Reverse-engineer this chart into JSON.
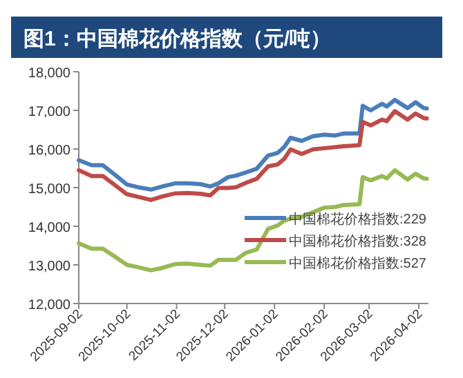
{
  "chart_data": {
    "type": "line",
    "title": "图1：中国棉花价格指数（元/吨）",
    "x": [
      "2025-09-02",
      "2025-09-10",
      "2025-09-17",
      "2025-09-25",
      "2025-10-02",
      "2025-10-09",
      "2025-10-17",
      "2025-10-24",
      "2025-11-01",
      "2025-11-09",
      "2025-11-17",
      "2025-11-23",
      "2025-11-28",
      "2025-12-04",
      "2025-12-09",
      "2025-12-15",
      "2025-12-22",
      "2025-12-29",
      "2026-01-04",
      "2026-01-08",
      "2026-01-12",
      "2026-01-19",
      "2026-01-26",
      "2026-02-02",
      "2026-02-09",
      "2026-02-14",
      "2026-02-24",
      "2026-02-26",
      "2026-03-03",
      "2026-03-10",
      "2026-03-13",
      "2026-03-18",
      "2026-03-26",
      "2026-03-31",
      "2026-04-05",
      "2026-04-07"
    ],
    "series": [
      {
        "name": "中国棉花价格指数:229",
        "color": "#4a7ebb",
        "values": [
          15710,
          15580,
          15580,
          15320,
          15080,
          15010,
          14950,
          15030,
          15110,
          15110,
          15090,
          15030,
          15110,
          15270,
          15310,
          15390,
          15490,
          15830,
          15900,
          16050,
          16290,
          16210,
          16330,
          16370,
          16350,
          16400,
          16400,
          17120,
          17000,
          17170,
          17100,
          17270,
          17060,
          17210,
          17060,
          17050
        ]
      },
      {
        "name": "中国棉花价格指数:328",
        "color": "#be4b48",
        "values": [
          15450,
          15300,
          15300,
          15050,
          14830,
          14760,
          14680,
          14770,
          14850,
          14860,
          14840,
          14800,
          14990,
          14990,
          15010,
          15120,
          15230,
          15550,
          15600,
          15740,
          15990,
          15870,
          15990,
          16020,
          16050,
          16070,
          16100,
          16700,
          16610,
          16760,
          16720,
          16980,
          16760,
          16920,
          16800,
          16790
        ]
      },
      {
        "name": "中国棉花价格指数:527",
        "color": "#98b954",
        "values": [
          13560,
          13420,
          13420,
          13200,
          13000,
          12940,
          12860,
          12920,
          13020,
          13030,
          13000,
          12980,
          13130,
          13130,
          13130,
          13310,
          13400,
          13930,
          14020,
          14140,
          14200,
          14240,
          14360,
          14480,
          14500,
          14550,
          14570,
          15270,
          15190,
          15300,
          15240,
          15450,
          15210,
          15360,
          15240,
          15230
        ]
      }
    ],
    "xlim": [
      "2025-09-02",
      "2026-04-08"
    ],
    "xticks": [
      {
        "value": "2025-09-02",
        "label": "2025-09-02"
      },
      {
        "value": "2025-10-02",
        "label": "2025-10-02"
      },
      {
        "value": "2025-11-02",
        "label": "2025-11-02"
      },
      {
        "value": "2025-12-02",
        "label": "2025-12-02"
      },
      {
        "value": "2026-01-02",
        "label": "2026-01-02"
      },
      {
        "value": "2026-02-02",
        "label": "2026-02-02"
      },
      {
        "value": "2026-03-02",
        "label": "2026-03-02"
      },
      {
        "value": "2026-04-02",
        "label": "2026-04-02"
      }
    ],
    "ylim": [
      12000,
      18000
    ],
    "yticks": [
      {
        "value": 12000,
        "label": "12,000"
      },
      {
        "value": 13000,
        "label": "13,000"
      },
      {
        "value": 14000,
        "label": "14,000"
      },
      {
        "value": 15000,
        "label": "15,000"
      },
      {
        "value": 16000,
        "label": "16,000"
      },
      {
        "value": 17000,
        "label": "17,000"
      },
      {
        "value": 18000,
        "label": "18,000"
      }
    ],
    "legend": "bottom right",
    "grid": false
  }
}
